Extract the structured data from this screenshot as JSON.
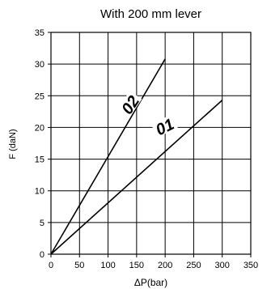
{
  "chart_data": {
    "type": "line",
    "title": "With 200 mm lever",
    "xlabel": "ΔP(bar)",
    "ylabel": "F (daN)",
    "xlim": [
      0,
      350
    ],
    "ylim": [
      0,
      35
    ],
    "x_ticks": [
      0,
      50,
      100,
      150,
      200,
      250,
      300,
      350
    ],
    "y_ticks": [
      0,
      5,
      10,
      15,
      20,
      25,
      30,
      35
    ],
    "grid": true,
    "series": [
      {
        "name": "02",
        "x": [
          0,
          200
        ],
        "y": [
          0,
          30.8
        ],
        "label_anchor": {
          "x": 140,
          "y": 23.5
        },
        "label_angle": -56
      },
      {
        "name": "01",
        "x": [
          0,
          300
        ],
        "y": [
          0,
          24.3
        ],
        "label_anchor": {
          "x": 200,
          "y": 20
        },
        "label_angle": -26
      }
    ],
    "colors": {
      "line": "#000000",
      "grid": "#000000",
      "background": "#ffffff"
    }
  }
}
